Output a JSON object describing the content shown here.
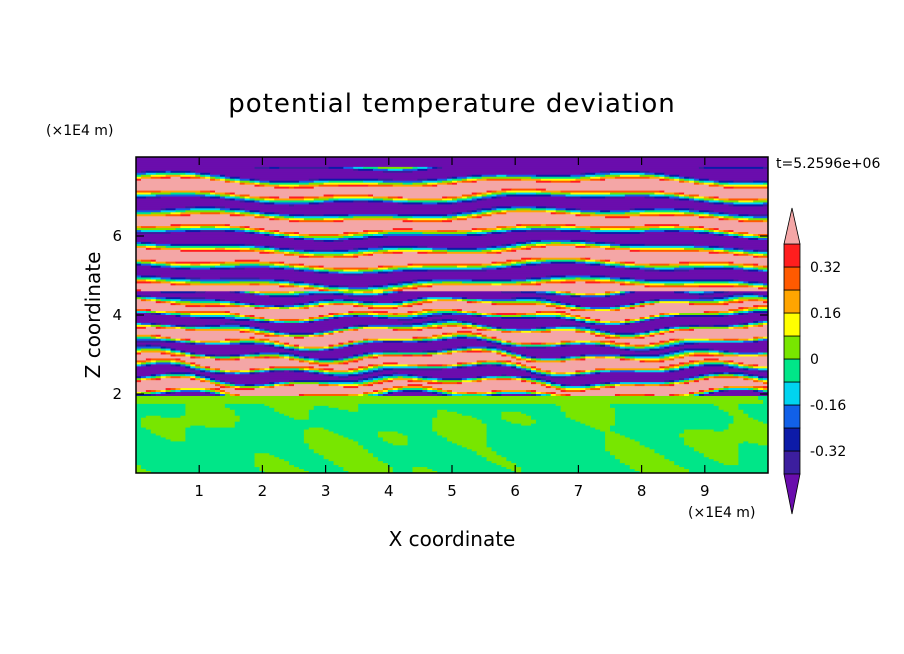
{
  "chart_data": {
    "type": "heatmap",
    "title": "potential temperature deviation",
    "xlabel": "X coordinate",
    "ylabel": "Z coordinate",
    "x_unit": "(×1E4 m)",
    "y_unit": "(×1E4 m)",
    "time_label": "t=5.2596e+06",
    "xlim": [
      0,
      10
    ],
    "ylim": [
      0,
      8
    ],
    "x_ticks": [
      1,
      2,
      3,
      4,
      5,
      6,
      7,
      8,
      9
    ],
    "y_ticks": [
      2,
      4,
      6
    ],
    "colorbar": {
      "levels": [
        -0.4,
        -0.32,
        -0.24,
        -0.16,
        -0.08,
        0,
        0.08,
        0.16,
        0.24,
        0.32,
        0.4
      ],
      "tick_labels": [
        "0.32",
        "0.16",
        "0",
        "-0.16",
        "-0.32"
      ],
      "tick_values": [
        0.32,
        0.16,
        0,
        -0.16,
        -0.32
      ],
      "colors": [
        "#6a0dad",
        "#3c1e9e",
        "#0d1ba8",
        "#1160e8",
        "#00d4f0",
        "#00e688",
        "#78e600",
        "#ffff00",
        "#ffa500",
        "#ff5a00",
        "#ff1e1e",
        "#f4a6a6"
      ],
      "extend": "both"
    },
    "bands": [
      {
        "z_from": 0,
        "z_to": 1.95,
        "pattern": "mixed",
        "values": [
          0,
          0.08
        ]
      },
      {
        "z_from": 1.95,
        "z_to": 4.6,
        "pattern": "turbulent-stripes",
        "values": [
          -0.4,
          0.4
        ]
      },
      {
        "z_from": 4.6,
        "z_to": 8,
        "pattern": "layered-stripes",
        "values": [
          -0.4,
          0.4
        ]
      }
    ]
  }
}
